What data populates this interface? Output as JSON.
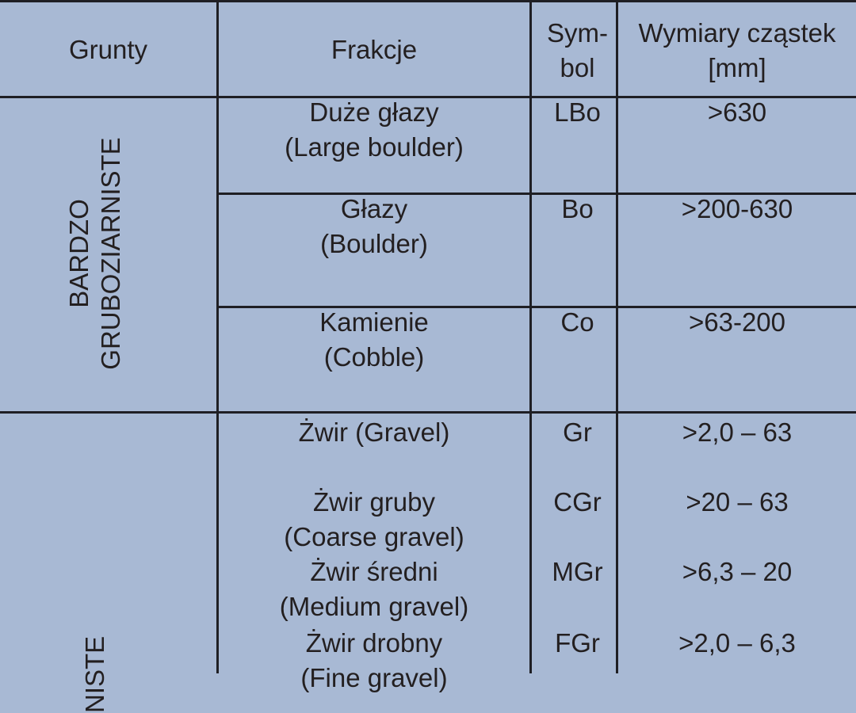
{
  "header": {
    "grunty": "Grunty",
    "frakcje": "Frakcje",
    "symbol_l1": "Sym-",
    "symbol_l2": "bol",
    "wymiary_l1": "Wymiary cząstek",
    "wymiary_l2": "[mm]"
  },
  "groups": [
    {
      "label_l1": "BARDZO",
      "label_l2": "GRUBOZIARNISTE",
      "rows": [
        {
          "name": "Duże głazy",
          "name_en": "(Large boulder)",
          "symbol": "LBo",
          "size": ">630"
        },
        {
          "name": "Głazy",
          "name_en": "(Boulder)",
          "symbol": "Bo",
          "size": ">200-630"
        },
        {
          "name": "Kamienie",
          "name_en": "(Cobble)",
          "symbol": "Co",
          "size": ">63-200"
        }
      ]
    },
    {
      "label_partial": "NISTE",
      "rows": [
        {
          "name": "Żwir (Gravel)",
          "symbol": "Gr",
          "size": ">2,0 – 63"
        },
        {
          "name": "Żwir gruby",
          "name_en": "(Coarse gravel)",
          "symbol": "CGr",
          "size": ">20 – 63"
        },
        {
          "name": "Żwir średni",
          "name_en": "(Medium gravel)",
          "symbol": "MGr",
          "size": ">6,3 – 20"
        },
        {
          "name": "Żwir drobny",
          "name_en": "(Fine gravel)",
          "symbol": "FGr",
          "size": ">2,0 – 6,3"
        }
      ]
    }
  ],
  "colors": {
    "background": "#a8b9d4",
    "rule": "#1f1f24",
    "text": "#231f20"
  }
}
